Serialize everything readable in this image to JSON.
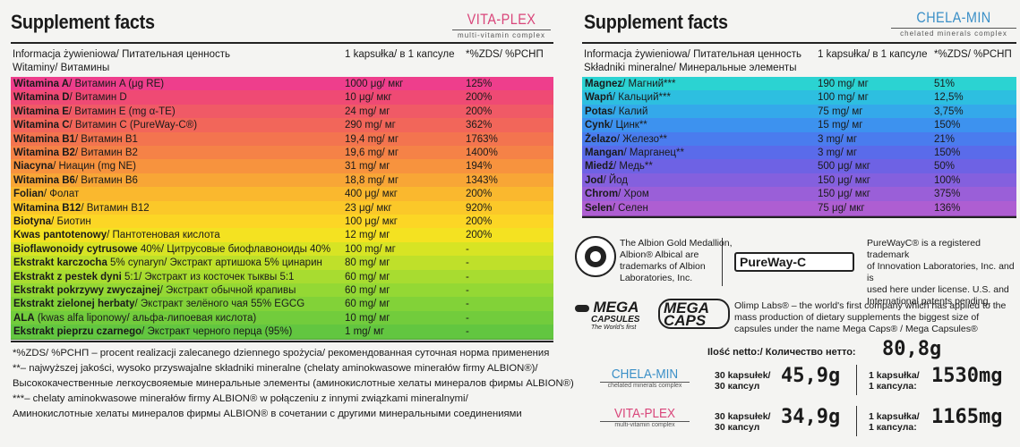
{
  "left": {
    "title": "Supplement facts",
    "brand_name": "VITA-PLEX",
    "brand_sub": "multi-vitamin complex",
    "header_col1": "Informacja żywieniowa/ Питательная ценность",
    "header_col2": "1 kapsułka/ в 1 капсуле",
    "header_col3": "*%ZDS/ %РСНП",
    "subheader": "Witaminy/ Витамины",
    "rows": [
      {
        "pl": "Witamina A",
        "ru": "/ Витамин A (μg RE)",
        "amount": "1000 μg/ мкг",
        "pct": "125%",
        "color": "#ee3e8c"
      },
      {
        "pl": "Witamina D",
        "ru": "/ Витамин D",
        "amount": "10 μg/ мкг",
        "pct": "200%",
        "color": "#ef4a74"
      },
      {
        "pl": "Witamina E",
        "ru": "/ Витамин E (mg α-TE)",
        "amount": "24 mg/ мг",
        "pct": "200%",
        "color": "#f05a66"
      },
      {
        "pl": "Witamina C",
        "ru": "/ Витамин C (PureWay-C®)",
        "amount": "290 mg/ мг",
        "pct": "362%",
        "color": "#f2665a"
      },
      {
        "pl": "Witamina B1",
        "ru": "/ Витамин B1",
        "amount": "19,4 mg/ мг",
        "pct": "1763%",
        "color": "#f3744f"
      },
      {
        "pl": "Witamina B2",
        "ru": "/ Витамин B2",
        "amount": "19,6 mg/ мг",
        "pct": "1400%",
        "color": "#f58247"
      },
      {
        "pl": "Niacyna",
        "ru": "/ Ниацин (mg NE)",
        "amount": "31 mg/ мг",
        "pct": "194%",
        "color": "#f7933e"
      },
      {
        "pl": "Witamina B6",
        "ru": "/ Витамин B6",
        "amount": "18,8 mg/ мг",
        "pct": "1343%",
        "color": "#f8a636"
      },
      {
        "pl": "Folian",
        "ru": "/ Фолат",
        "amount": "400 μg/ мкг",
        "pct": "200%",
        "color": "#fab82e"
      },
      {
        "pl": "Witamina B12",
        "ru": "/ Витамин B12",
        "amount": "23 μg/ мкг",
        "pct": "920%",
        "color": "#fbc829"
      },
      {
        "pl": "Biotyna",
        "ru": "/ Биотин",
        "amount": "100 μg/ мкг",
        "pct": "200%",
        "color": "#fcd625"
      },
      {
        "pl": "Kwas pantotenowy",
        "ru": "/ Пантотеновая кислота",
        "amount": "12 mg/ мг",
        "pct": "200%",
        "color": "#f4e221"
      },
      {
        "pl": "Bioflawonoidy cytrusowe",
        "ru": " 40%/ Цитрусовые биофлавоноиды 40%",
        "amount": "100 mg/ мг",
        "pct": "-",
        "color": "#d7e424"
      },
      {
        "pl": "Ekstrakt karczocha",
        "ru": " 5% cynaryn/ Экстракт артишока 5% цинарин",
        "amount": "80 mg/ мг",
        "pct": "-",
        "color": "#bfe02a"
      },
      {
        "pl": "Ekstrakt z pestek dyni",
        "ru": " 5:1/ Экстракт из косточек тыквы 5:1",
        "amount": "60 mg/ мг",
        "pct": "-",
        "color": "#a8dc30"
      },
      {
        "pl": "Ekstrakt pokrzywy zwyczajnej",
        "ru": "/ Экстракт обычной крапивы",
        "amount": "60 mg/ мг",
        "pct": "-",
        "color": "#94d834"
      },
      {
        "pl": "Ekstrakt zielonej herbaty",
        "ru": "/ Экстракт зелёного чая 55% EGCG",
        "amount": "60 mg/ мг",
        "pct": "-",
        "color": "#82d238"
      },
      {
        "pl": "ALA",
        "ru": " (kwas alfa liponowy/ альфа-липоевая кислота)",
        "amount": "10 mg/ мг",
        "pct": "-",
        "color": "#72cc3c"
      },
      {
        "pl": "Ekstrakt pieprzu czarnego",
        "ru": "/ Экстракт черного перца (95%)",
        "amount": "1 mg/ мг",
        "pct": "-",
        "color": "#62c640"
      }
    ],
    "notes": [
      "*%ZDS/ %РСНП – procent realizacji zalecanego dziennego spożycia/ рекомендованная суточная норма применения",
      "**– najwyższej jakości, wysoko przyswajalne składniki mineralne (chelaty aminokwasowe minerałów firmy ALBION®)/",
      "Высококачественные легкоусвояемые минеральные элементы (аминокислотные хелаты минералов фирмы ALBION®)",
      "***– chelaty aminokwasowe minerałów firmy ALBION® w połączeniu z innymi związkami mineralnymi/",
      "Аминокислотные хелаты минералов фирмы ALBION® в сочетании с другими минеральными соединениями"
    ]
  },
  "right": {
    "title": "Supplement facts",
    "brand_name": "CHELA-MIN",
    "brand_sub": "chelated minerals complex",
    "header_col1": "Informacja żywieniowa/ Питательная ценность",
    "header_col2": "1 kapsułka/ в 1 капсуле",
    "header_col3": "*%ZDS/ %РСНП",
    "subheader": "Składniki mineralne/ Минеральные элементы",
    "rows": [
      {
        "pl": "Magnez",
        "ru": "/ Магний***",
        "amount": "190 mg/ мг",
        "pct": "51%",
        "color": "#2bd3d2"
      },
      {
        "pl": "Wapń",
        "ru": "/ Кальций***",
        "amount": "100 mg/ мг",
        "pct": "12,5%",
        "color": "#2dbfe0"
      },
      {
        "pl": "Potas",
        "ru": "/ Калий",
        "amount": "75 mg/ мг",
        "pct": "3,75%",
        "color": "#34a9ea"
      },
      {
        "pl": "Cynk",
        "ru": "/ Цинк**",
        "amount": "15 mg/ мг",
        "pct": "150%",
        "color": "#3d92ef"
      },
      {
        "pl": "Żelazo",
        "ru": "/ Железо**",
        "amount": "3 mg/ мг",
        "pct": "21%",
        "color": "#4a7cee"
      },
      {
        "pl": "Mangan",
        "ru": "/ Марганец**",
        "amount": "3 mg/ мг",
        "pct": "150%",
        "color": "#5a6bea"
      },
      {
        "pl": "Miedź",
        "ru": "/ Медь**",
        "amount": "500 μg/ мкг",
        "pct": "50%",
        "color": "#6e62e4"
      },
      {
        "pl": "Jod",
        "ru": "/ Йод",
        "amount": "150 μg/ мкг",
        "pct": "100%",
        "color": "#8460de"
      },
      {
        "pl": "Chrom",
        "ru": "/ Хром",
        "amount": "150 μg/ мкг",
        "pct": "375%",
        "color": "#9a5fd8"
      },
      {
        "pl": "Selen",
        "ru": "/ Селен",
        "amount": "75 μg/ мкг",
        "pct": "136%",
        "color": "#ae5ed2"
      }
    ],
    "albion_text": [
      "The Albion Gold Medallion,",
      "Albion® Albical are",
      "trademarks of Albion",
      "Laboratories, Inc."
    ],
    "albion_logo_text": "ALBION MINERALS",
    "pureway_logo": "PureWay-C",
    "pureway_text": [
      "PureWayC® is a registered trademark",
      "of Innovation Laboratories, Inc. and is",
      "used here under license. U.S. and",
      "International patents pending."
    ],
    "megacaps_logo_1": "MEGA",
    "megacaps_logo_1b": "CAPSULES",
    "megacaps_logo_1c": "The World's first",
    "megacaps_logo_2": "MEGA CAPS",
    "olimp_text": [
      "Olimp Labs® – the world's first company which has applied to the",
      "mass production of dietary supplements the biggest size of",
      "capsules under the name Mega Caps® / Mega Capsules®"
    ],
    "net_label": "Ilość netto:/ Количество нетто:",
    "net_value": "80,8g",
    "prices": [
      {
        "brand": "CHELA-MIN",
        "brand_sub": "chelated minerals complex",
        "count_label_1": "30 kapsułek/",
        "count_label_2": "30 капсул",
        "weight": "45,9g",
        "per_label_1": "1 kapsułka/",
        "per_label_2": "1 капсула:",
        "per_value": "1530mg"
      },
      {
        "brand": "VITA-PLEX",
        "brand_sub": "multi-vitamin complex",
        "count_label_1": "30 kapsułek/",
        "count_label_2": "30 капсул",
        "weight": "34,9g",
        "per_label_1": "1 kapsułka/",
        "per_label_2": "1 капсула:",
        "per_value": "1165mg"
      }
    ]
  }
}
